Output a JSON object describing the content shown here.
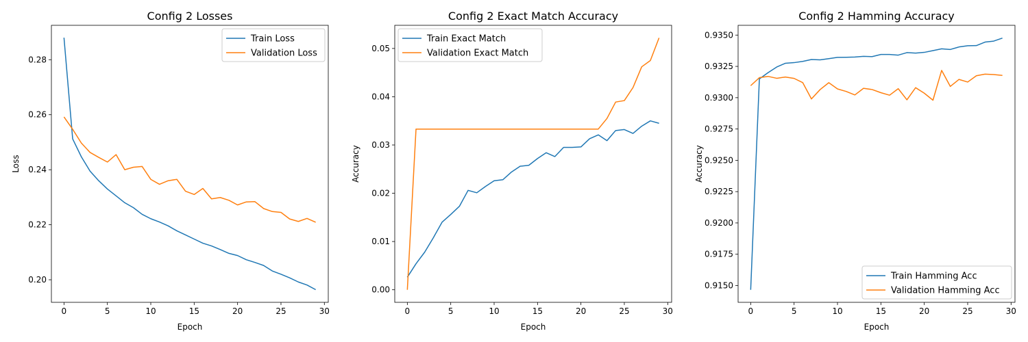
{
  "colors": {
    "train": "#1f77b4",
    "validation": "#ff7f0e"
  },
  "chart_data": [
    {
      "type": "line",
      "title": "Config 2 Losses",
      "xlabel": "Epoch",
      "ylabel": "Loss",
      "xlim": [
        -1.45,
        30.45
      ],
      "ylim": [
        0.1918,
        0.2925
      ],
      "xticks": [
        0,
        5,
        10,
        15,
        20,
        25,
        30
      ],
      "xtick_labels": [
        "0",
        "5",
        "10",
        "15",
        "20",
        "25",
        "30"
      ],
      "yticks": [
        0.2,
        0.22,
        0.24,
        0.26,
        0.28
      ],
      "ytick_labels": [
        "0.20",
        "0.22",
        "0.24",
        "0.26",
        "0.28"
      ],
      "grid": false,
      "legend_position": "top-right",
      "x": [
        0,
        1,
        2,
        3,
        4,
        5,
        6,
        7,
        8,
        9,
        10,
        11,
        12,
        13,
        14,
        15,
        16,
        17,
        18,
        19,
        20,
        21,
        22,
        23,
        24,
        25,
        26,
        27,
        28,
        29
      ],
      "series": [
        {
          "name": "Train Loss",
          "color": "#1f77b4",
          "values": [
            0.288,
            0.2512,
            0.2447,
            0.2395,
            0.236,
            0.233,
            0.2305,
            0.228,
            0.2262,
            0.2238,
            0.2222,
            0.221,
            0.2196,
            0.2178,
            0.2163,
            0.2148,
            0.2133,
            0.2123,
            0.211,
            0.2096,
            0.2088,
            0.2073,
            0.2063,
            0.2052,
            0.2032,
            0.202,
            0.2007,
            0.1992,
            0.1981,
            0.1964
          ]
        },
        {
          "name": "Validation Loss",
          "color": "#ff7f0e",
          "values": [
            0.2592,
            0.2547,
            0.2497,
            0.2463,
            0.2445,
            0.2428,
            0.2455,
            0.24,
            0.2409,
            0.2412,
            0.2365,
            0.2347,
            0.236,
            0.2365,
            0.2322,
            0.231,
            0.2332,
            0.2294,
            0.2299,
            0.2289,
            0.2272,
            0.2283,
            0.2284,
            0.2259,
            0.2248,
            0.2245,
            0.2221,
            0.2212,
            0.2223,
            0.2209
          ]
        }
      ]
    },
    {
      "type": "line",
      "title": "Config 2 Exact Match Accuracy",
      "xlabel": "Epoch",
      "ylabel": "Accuracy",
      "xlim": [
        -1.45,
        30.45
      ],
      "ylim": [
        -0.0026,
        0.0548
      ],
      "xticks": [
        0,
        5,
        10,
        15,
        20,
        25,
        30
      ],
      "xtick_labels": [
        "0",
        "5",
        "10",
        "15",
        "20",
        "25",
        "30"
      ],
      "yticks": [
        0.0,
        0.01,
        0.02,
        0.03,
        0.04,
        0.05
      ],
      "ytick_labels": [
        "0.00",
        "0.01",
        "0.02",
        "0.03",
        "0.04",
        "0.05"
      ],
      "grid": false,
      "legend_position": "top-left",
      "x": [
        0,
        1,
        2,
        3,
        4,
        5,
        6,
        7,
        8,
        9,
        10,
        11,
        12,
        13,
        14,
        15,
        16,
        17,
        18,
        19,
        20,
        21,
        22,
        23,
        24,
        25,
        26,
        27,
        28,
        29
      ],
      "series": [
        {
          "name": "Train Exact Match",
          "color": "#1f77b4",
          "values": [
            0.0026,
            0.0054,
            0.0078,
            0.0108,
            0.014,
            0.0156,
            0.0173,
            0.0206,
            0.0201,
            0.0214,
            0.0226,
            0.0228,
            0.0244,
            0.0256,
            0.0258,
            0.0272,
            0.0284,
            0.0276,
            0.0295,
            0.0295,
            0.0296,
            0.0313,
            0.0321,
            0.0309,
            0.033,
            0.0332,
            0.0324,
            0.0339,
            0.035,
            0.0345
          ]
        },
        {
          "name": "Validation Exact Match",
          "color": "#ff7f0e",
          "values": [
            0.0,
            0.0333,
            0.0333,
            0.0333,
            0.0333,
            0.0333,
            0.0333,
            0.0333,
            0.0333,
            0.0333,
            0.0333,
            0.0333,
            0.0333,
            0.0333,
            0.0333,
            0.0333,
            0.0333,
            0.0333,
            0.0333,
            0.0333,
            0.0333,
            0.0333,
            0.0333,
            0.0355,
            0.0389,
            0.0392,
            0.0419,
            0.0462,
            0.0475,
            0.0522
          ]
        }
      ]
    },
    {
      "type": "line",
      "title": "Config 2 Hamming Accuracy",
      "xlabel": "Epoch",
      "ylabel": "Accuracy",
      "xlim": [
        -1.45,
        30.45
      ],
      "ylim": [
        0.91366,
        0.93578
      ],
      "xticks": [
        0,
        5,
        10,
        15,
        20,
        25,
        30
      ],
      "xtick_labels": [
        "0",
        "5",
        "10",
        "15",
        "20",
        "25",
        "30"
      ],
      "yticks": [
        0.915,
        0.9175,
        0.92,
        0.9225,
        0.925,
        0.9275,
        0.93,
        0.9325,
        0.935
      ],
      "ytick_labels": [
        "0.9150",
        "0.9175",
        "0.9200",
        "0.9225",
        "0.9250",
        "0.9275",
        "0.9300",
        "0.9325",
        "0.9350"
      ],
      "grid": false,
      "legend_position": "bottom-right",
      "x": [
        0,
        1,
        2,
        3,
        4,
        5,
        6,
        7,
        8,
        9,
        10,
        11,
        12,
        13,
        14,
        15,
        16,
        17,
        18,
        19,
        20,
        21,
        22,
        23,
        24,
        25,
        26,
        27,
        28,
        29
      ],
      "series": [
        {
          "name": "Train Hamming Acc",
          "color": "#1f77b4",
          "values": [
            0.91466,
            0.9315,
            0.932,
            0.93245,
            0.93275,
            0.9328,
            0.9329,
            0.93305,
            0.93302,
            0.93312,
            0.93322,
            0.93323,
            0.93325,
            0.9333,
            0.93328,
            0.93345,
            0.93345,
            0.9334,
            0.9336,
            0.93356,
            0.93362,
            0.93376,
            0.9339,
            0.93385,
            0.93405,
            0.93415,
            0.93416,
            0.93444,
            0.93452,
            0.93476
          ]
        },
        {
          "name": "Validation Hamming Acc",
          "color": "#ff7f0e",
          "values": [
            0.93096,
            0.9316,
            0.9317,
            0.93155,
            0.93165,
            0.93154,
            0.9312,
            0.9299,
            0.93065,
            0.9312,
            0.9307,
            0.9305,
            0.93022,
            0.93075,
            0.93065,
            0.9304,
            0.9302,
            0.93072,
            0.92983,
            0.9308,
            0.93036,
            0.9298,
            0.93218,
            0.9309,
            0.93146,
            0.93125,
            0.93175,
            0.93188,
            0.93185,
            0.93178
          ]
        }
      ]
    }
  ]
}
